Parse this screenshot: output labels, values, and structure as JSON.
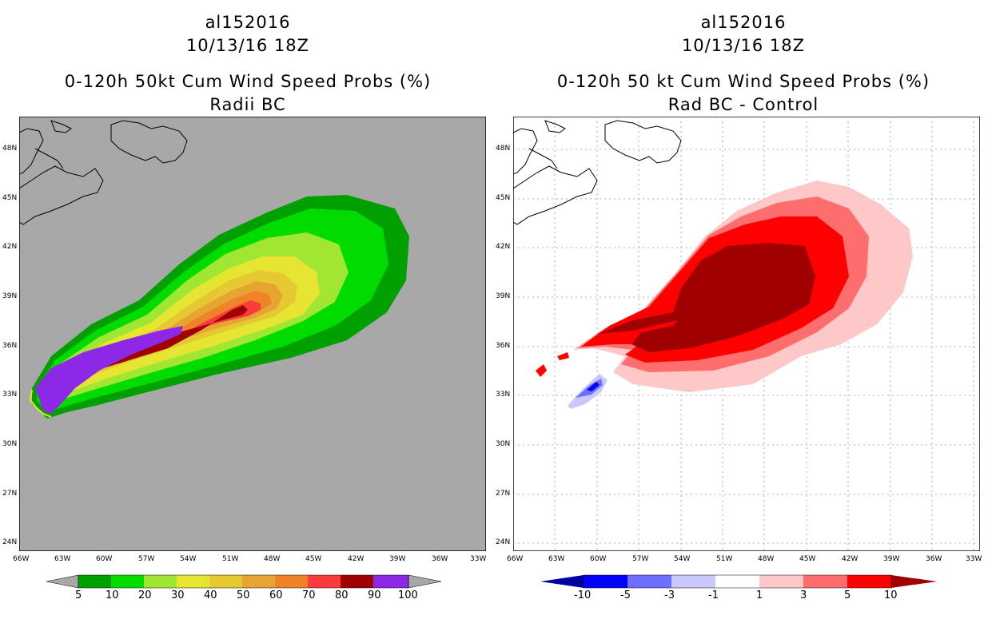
{
  "left_panel": {
    "title_line1": "al152016",
    "title_line2": "10/13/16 18Z",
    "title_line3": "0-120h 50kt Cum Wind Speed Probs (%)",
    "title_line4": "Radii BC",
    "lat_labels": [
      "48N",
      "45N",
      "42N",
      "39N",
      "36N",
      "33N",
      "30N",
      "27N",
      "24N"
    ],
    "lon_labels": [
      "66W",
      "63W",
      "60W",
      "57W",
      "54W",
      "51W",
      "48W",
      "45W",
      "42W",
      "39W",
      "36W",
      "33W"
    ],
    "colorbar_labels": [
      "5",
      "10",
      "20",
      "30",
      "40",
      "50",
      "60",
      "70",
      "80",
      "90",
      "100"
    ],
    "colorbar_colors": [
      "#00a000",
      "#00dc00",
      "#a0e632",
      "#e6e632",
      "#e6c832",
      "#e6a532",
      "#f08228",
      "#fa3c3c",
      "#a00000",
      "#8c28e6"
    ],
    "background_color": "#a8a8a8"
  },
  "right_panel": {
    "title_line1": "al152016",
    "title_line2": "10/13/16 18Z",
    "title_line3": "0-120h 50 kt Cum Wind Speed Probs (%)",
    "title_line4": "Rad BC - Control",
    "lat_labels": [
      "48N",
      "45N",
      "42N",
      "39N",
      "36N",
      "33N",
      "30N",
      "27N",
      "24N"
    ],
    "lon_labels": [
      "66W",
      "63W",
      "60W",
      "57W",
      "54W",
      "51W",
      "48W",
      "45W",
      "42W",
      "39W",
      "36W",
      "33W"
    ],
    "colorbar_labels": [
      "-10",
      "-5",
      "-3",
      "-1",
      "1",
      "3",
      "5",
      "10"
    ],
    "colorbar_colors": [
      "#0000a0",
      "#0000ff",
      "#6e6eff",
      "#c8c8ff",
      "#ffffff",
      "#ffc8c8",
      "#ff6e6e",
      "#ff0000",
      "#a00000"
    ]
  }
}
